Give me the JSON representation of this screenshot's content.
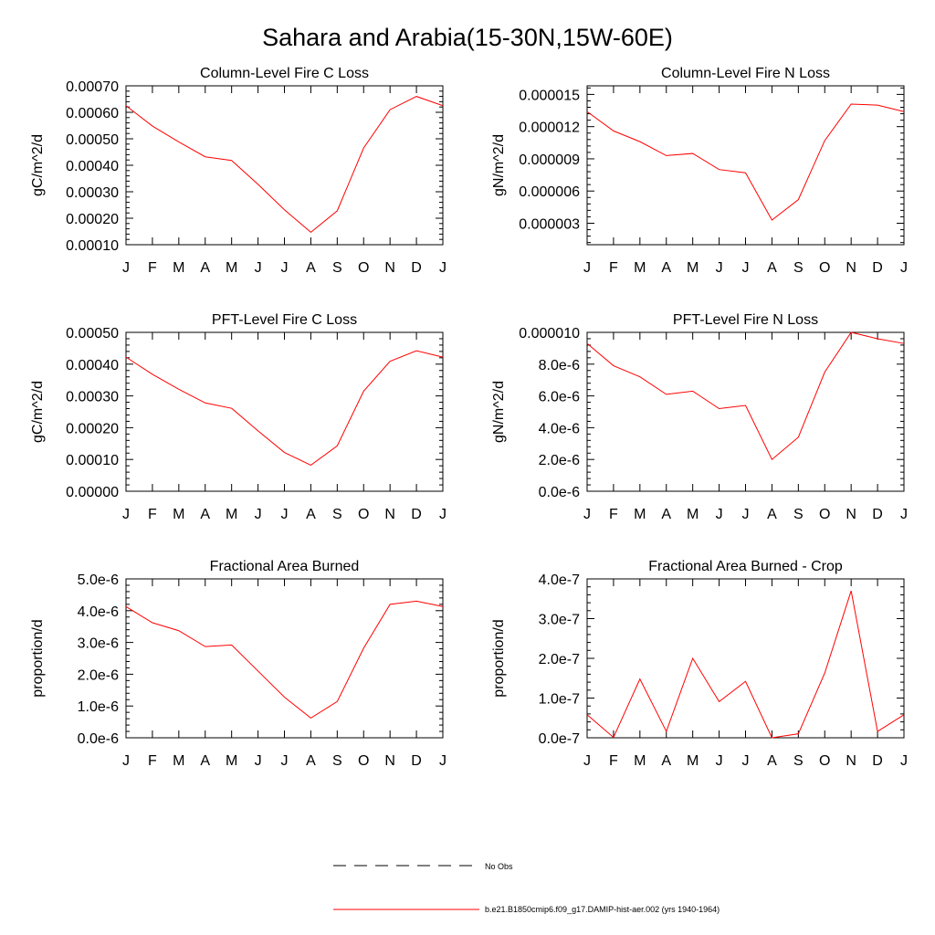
{
  "page_title": "Sahara and Arabia(15-30N,15W-60E)",
  "colors": {
    "series_line": "#ff0000",
    "axis": "#000000",
    "obs_line": "#000000"
  },
  "legend": {
    "obs_label": "No Obs",
    "model_label": "b.e21.B1850cmip6.f09_g17.DAMIP-hist-aer.002 (yrs 1940-1964)"
  },
  "chart_data": [
    {
      "type": "line",
      "title": "Column-Level Fire C Loss",
      "ylabel": "gC/m^2/d",
      "categories": [
        "J",
        "F",
        "M",
        "A",
        "M",
        "J",
        "J",
        "A",
        "S",
        "O",
        "N",
        "D",
        "J"
      ],
      "ylim": [
        0.0001,
        0.0007
      ],
      "yticks": [
        "0.00010",
        "0.00020",
        "0.00030",
        "0.00040",
        "0.00050",
        "0.00060",
        "0.00070"
      ],
      "ytick_values": [
        0.0001,
        0.0002,
        0.0003,
        0.0004,
        0.0005,
        0.0006,
        0.0007
      ],
      "series": [
        {
          "values": [
            0.000625,
            0.000548,
            0.000488,
            0.000432,
            0.000418,
            0.000328,
            0.000232,
            0.000147,
            0.000228,
            0.000465,
            0.00061,
            0.00066,
            0.000625
          ]
        }
      ]
    },
    {
      "type": "line",
      "title": "Column-Level Fire N Loss",
      "ylabel": "gN/m^2/d",
      "categories": [
        "J",
        "F",
        "M",
        "A",
        "M",
        "J",
        "J",
        "A",
        "S",
        "O",
        "N",
        "D",
        "J"
      ],
      "ylim": [
        1e-06,
        1.58e-05
      ],
      "yticks": [
        "0.000003",
        "0.000006",
        "0.000009",
        "0.000012",
        "0.000015"
      ],
      "ytick_values": [
        3e-06,
        6e-06,
        9e-06,
        1.2e-05,
        1.5e-05
      ],
      "series": [
        {
          "values": [
            1.34e-05,
            1.16e-05,
            1.06e-05,
            9.3e-06,
            9.5e-06,
            8e-06,
            7.7e-06,
            3.3e-06,
            5.2e-06,
            1.07e-05,
            1.41e-05,
            1.4e-05,
            1.34e-05
          ]
        }
      ]
    },
    {
      "type": "line",
      "title": "PFT-Level Fire C Loss",
      "ylabel": "gC/m^2/d",
      "categories": [
        "J",
        "F",
        "M",
        "A",
        "M",
        "J",
        "J",
        "A",
        "S",
        "O",
        "N",
        "D",
        "J"
      ],
      "ylim": [
        0,
        0.0005
      ],
      "yticks": [
        "0.00000",
        "0.00010",
        "0.00020",
        "0.00030",
        "0.00040",
        "0.00050"
      ],
      "ytick_values": [
        0,
        0.0001,
        0.0002,
        0.0003,
        0.0004,
        0.0005
      ],
      "series": [
        {
          "values": [
            0.000422,
            0.000368,
            0.000321,
            0.000278,
            0.000261,
            0.00019,
            0.000122,
            8.2e-05,
            0.000143,
            0.000315,
            0.000409,
            0.000442,
            0.000422
          ]
        }
      ]
    },
    {
      "type": "line",
      "title": "PFT-Level Fire N Loss",
      "ylabel": "gN/m^2/d",
      "categories": [
        "J",
        "F",
        "M",
        "A",
        "M",
        "J",
        "J",
        "A",
        "S",
        "O",
        "N",
        "D",
        "J"
      ],
      "ylim": [
        0,
        1e-05
      ],
      "yticks": [
        "0.0e-6",
        "2.0e-6",
        "4.0e-6",
        "6.0e-6",
        "8.0e-6",
        "0.000010"
      ],
      "ytick_values": [
        0,
        2e-06,
        4e-06,
        6e-06,
        8e-06,
        1e-05
      ],
      "series": [
        {
          "values": [
            9.3e-06,
            7.9e-06,
            7.2e-06,
            6.1e-06,
            6.3e-06,
            5.2e-06,
            5.4e-06,
            2e-06,
            3.4e-06,
            7.5e-06,
            1e-05,
            9.6e-06,
            9.3e-06
          ]
        }
      ]
    },
    {
      "type": "line",
      "title": "Fractional Area Burned",
      "ylabel": "proportion/d",
      "categories": [
        "J",
        "F",
        "M",
        "A",
        "M",
        "J",
        "J",
        "A",
        "S",
        "O",
        "N",
        "D",
        "J"
      ],
      "ylim": [
        0,
        5e-06
      ],
      "yticks": [
        "0.0e-6",
        "1.0e-6",
        "2.0e-6",
        "3.0e-6",
        "4.0e-6",
        "5.0e-6"
      ],
      "ytick_values": [
        0,
        1e-06,
        2e-06,
        3e-06,
        4e-06,
        5e-06
      ],
      "series": [
        {
          "values": [
            4.13e-06,
            3.62e-06,
            3.37e-06,
            2.87e-06,
            2.92e-06,
            2.1e-06,
            1.28e-06,
            6.2e-07,
            1.14e-06,
            2.82e-06,
            4.2e-06,
            4.3e-06,
            4.13e-06
          ]
        }
      ]
    },
    {
      "type": "line",
      "title": "Fractional Area Burned - Crop",
      "ylabel": "proportion/d",
      "categories": [
        "J",
        "F",
        "M",
        "A",
        "M",
        "J",
        "J",
        "A",
        "S",
        "O",
        "N",
        "D",
        "J"
      ],
      "ylim": [
        0,
        4e-07
      ],
      "yticks": [
        "0.0e-7",
        "1.0e-7",
        "2.0e-7",
        "3.0e-7",
        "4.0e-7"
      ],
      "ytick_values": [
        0,
        1e-07,
        2e-07,
        3e-07,
        4e-07
      ],
      "series": [
        {
          "values": [
            5.8e-08,
            1e-09,
            1.48e-07,
            1.6e-08,
            2e-07,
            9.1e-08,
            1.42e-07,
            0.0,
            1e-08,
            1.63e-07,
            3.7e-07,
            1.6e-08,
            5.8e-08
          ]
        }
      ]
    }
  ]
}
